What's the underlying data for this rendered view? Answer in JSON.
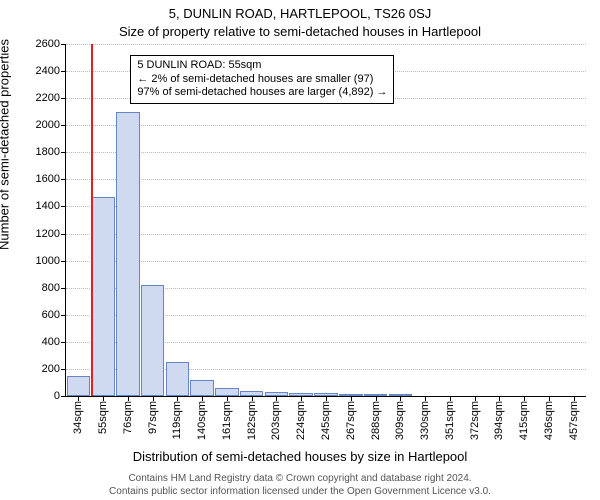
{
  "title_main": "5, DUNLIN ROAD, HARTLEPOOL, TS26 0SJ",
  "title_sub": "Size of property relative to semi-detached houses in Hartlepool",
  "y_label": "Number of semi-detached properties",
  "x_label": "Distribution of semi-detached houses by size in Hartlepool",
  "footer1": "Contains HM Land Registry data © Crown copyright and database right 2024.",
  "footer2": "Contains public sector information licensed under the Open Government Licence v3.0.",
  "chart": {
    "type": "bar",
    "background_color": "#ffffff",
    "grid_color": "#bbbbbb",
    "bar_fill": "#cfdaf0",
    "bar_stroke": "#6986c4",
    "marker_color": "#d22",
    "label_fontsize": 13,
    "tick_fontsize": 11,
    "annot_fontsize": 11,
    "ylim": [
      0,
      2600
    ],
    "ytick_step": 200,
    "x_categories": [
      "34sqm",
      "55sqm",
      "76sqm",
      "97sqm",
      "119sqm",
      "140sqm",
      "161sqm",
      "182sqm",
      "203sqm",
      "224sqm",
      "245sqm",
      "267sqm",
      "288sqm",
      "309sqm",
      "330sqm",
      "351sqm",
      "372sqm",
      "394sqm",
      "415sqm",
      "436sqm",
      "457sqm"
    ],
    "values": [
      150,
      1470,
      2100,
      820,
      250,
      120,
      60,
      35,
      30,
      25,
      20,
      18,
      15,
      10,
      0,
      0,
      0,
      0,
      0,
      0,
      0
    ],
    "marker_index": 1,
    "bar_width_ratio": 0.95
  },
  "annot": {
    "line1": "5 DUNLIN ROAD: 55sqm",
    "line2": "← 2% of semi-detached houses are smaller (97)",
    "line3": "97% of semi-detached houses are larger (4,892) →"
  }
}
